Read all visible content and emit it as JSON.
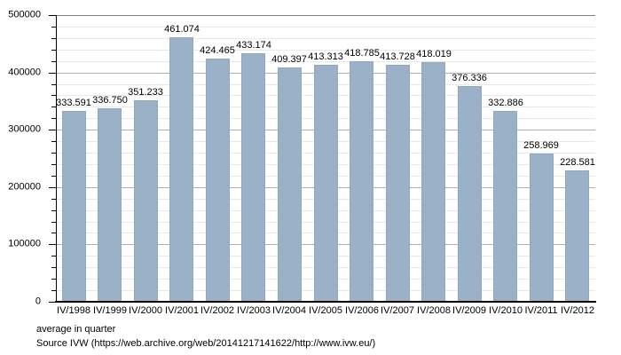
{
  "chart_data": {
    "type": "bar",
    "categories": [
      "IV/1998",
      "IV/1999",
      "IV/2000",
      "IV/2001",
      "IV/2002",
      "IV/2003",
      "IV/2004",
      "IV/2005",
      "IV/2006",
      "IV/2007",
      "IV/2008",
      "IV/2009",
      "IV/2010",
      "IV/2011",
      "IV/2012"
    ],
    "values": [
      333591,
      336750,
      351233,
      461074,
      424465,
      433174,
      409397,
      413313,
      418785,
      413728,
      418019,
      376336,
      332886,
      258969,
      228581
    ],
    "value_labels": [
      "333.591",
      "336.750",
      "351.233",
      "461.074",
      "424.465",
      "433.174",
      "409.397",
      "413.313",
      "418.785",
      "413.728",
      "418.019",
      "376.336",
      "332.886",
      "258.969",
      "228.581"
    ],
    "title": "",
    "xlabel": "",
    "ylabel": "",
    "ylim": [
      0,
      500000
    ],
    "y_major_step": 100000,
    "y_minor_step": 20000,
    "y_tick_labels": [
      "0",
      "100000",
      "200000",
      "300000",
      "400000",
      "500000"
    ],
    "grid": true,
    "legend_position": "none"
  },
  "footer": {
    "note": "average in quarter",
    "source": "Source IVW (https://web.archive.org/web/20141217141622/http://www.ivw.eu/)"
  },
  "colors": {
    "bar_fill": "#9bb1c8",
    "bar_border": "#90a9c2",
    "grid_major": "#b0b0b0",
    "grid_minor": "#e9e9e9",
    "top_line": "#808080",
    "axis": "#000000",
    "background": "#ffffff",
    "text": "#000000"
  }
}
